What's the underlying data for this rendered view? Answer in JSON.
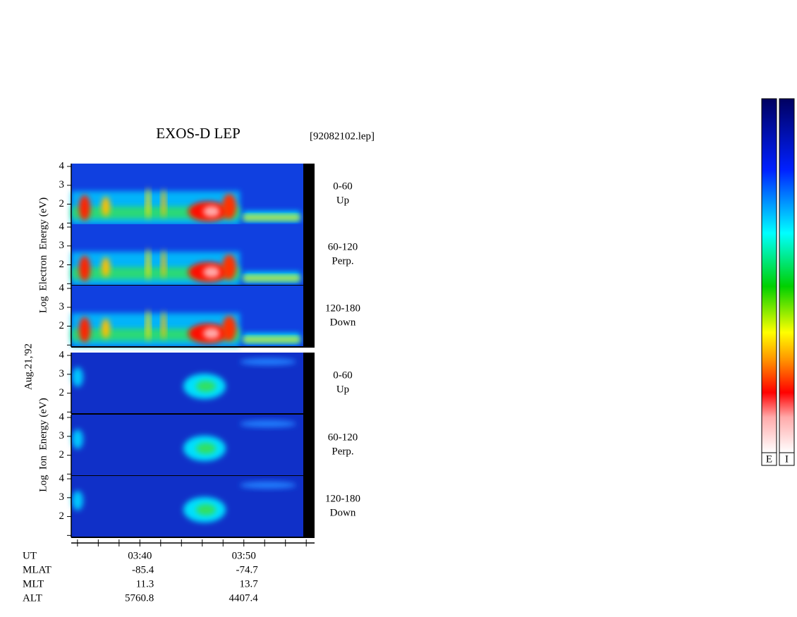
{
  "chart_data": {
    "type": "spectrogram",
    "title": "EXOS-D LEP",
    "file": "[92082102.lep]",
    "date": "Aug.21,'92",
    "groups": [
      {
        "ylabel": "Log  Electron  Energy (eV)",
        "panels": [
          {
            "range": "0-60",
            "direction": "Up"
          },
          {
            "range": "60-120",
            "direction": "Perp."
          },
          {
            "range": "120-180",
            "direction": "Down"
          }
        ]
      },
      {
        "ylabel": "Log  Ion  Energy (eV)",
        "panels": [
          {
            "range": "0-60",
            "direction": "Up"
          },
          {
            "range": "60-120",
            "direction": "Perp."
          },
          {
            "range": "120-180",
            "direction": "Down"
          }
        ]
      }
    ],
    "ylim": [
      0.9,
      4.15
    ],
    "yticks": [
      2,
      3,
      4
    ],
    "yminor_ticks": [
      1
    ],
    "xlim": [
      213.4,
      236.8
    ],
    "xticks": [
      {
        "value": 220,
        "label": "03:40"
      },
      {
        "value": 230,
        "label": "03:50"
      }
    ],
    "xminor_ticks": [
      214,
      216,
      218,
      222,
      224,
      226,
      228,
      232,
      234,
      236
    ],
    "ephemeris": {
      "time_label": "UT",
      "rows": [
        {
          "name": "MLAT",
          "values": [
            -85.4,
            -74.7
          ]
        },
        {
          "name": "MLT",
          "values": [
            11.3,
            13.7
          ]
        },
        {
          "name": "ALT",
          "values": [
            5760.8,
            4407.4
          ]
        }
      ]
    },
    "colorbar_labels": [
      "E",
      "I"
    ]
  }
}
